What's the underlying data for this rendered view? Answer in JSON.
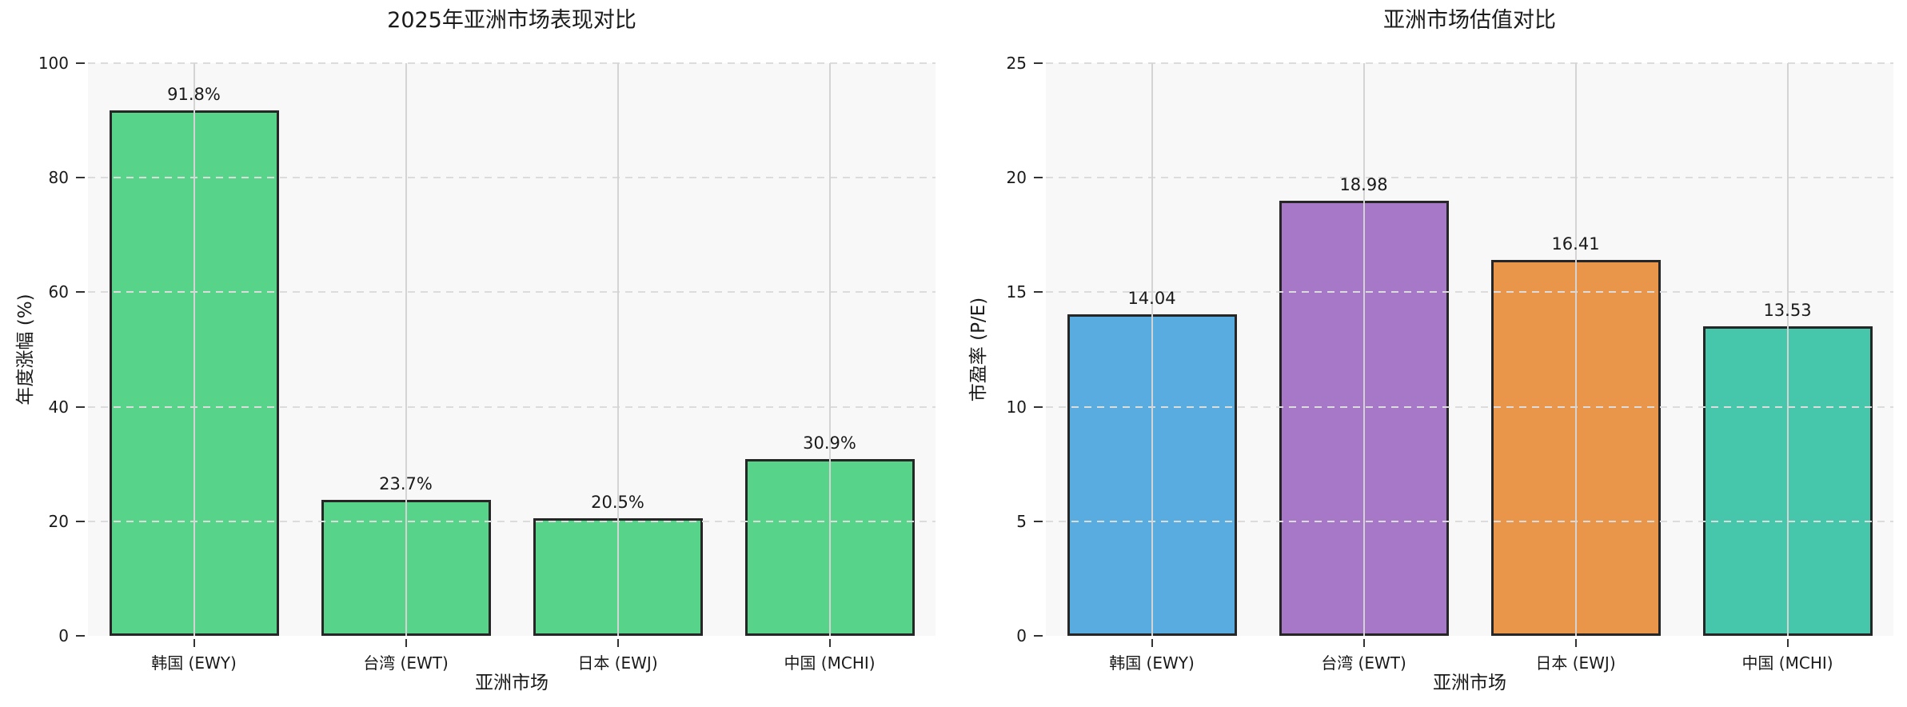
{
  "figure": {
    "background": "#ffffff",
    "plot_background": "#f8f8f8",
    "vertical_gridline_color": "#d4d4d4",
    "horizontal_gridline_color": "#dcdcdc",
    "bar_edge_color": "#262626"
  },
  "chart_data": [
    {
      "type": "bar",
      "title": "2025年亚洲市场表现对比",
      "xlabel": "亚洲市场",
      "ylabel": "年度涨幅 (%)",
      "categories": [
        "韩国 (EWY)",
        "台湾 (EWT)",
        "日本 (EWJ)",
        "中国 (MCHI)"
      ],
      "values": [
        91.8,
        23.7,
        20.5,
        30.9
      ],
      "value_labels": [
        "91.8%",
        "23.7%",
        "20.5%",
        "30.9%"
      ],
      "bar_colors": [
        "#57d38a",
        "#57d38a",
        "#57d38a",
        "#57d38a"
      ],
      "ylim": [
        0,
        100
      ],
      "yticks": [
        0,
        20,
        40,
        60,
        80,
        100
      ],
      "grid": "on",
      "legend": "none"
    },
    {
      "type": "bar",
      "title": "亚洲市场估值对比",
      "xlabel": "亚洲市场",
      "ylabel": "市盈率 (P/E)",
      "categories": [
        "韩国 (EWY)",
        "台湾 (EWT)",
        "日本 (EWJ)",
        "中国 (MCHI)"
      ],
      "values": [
        14.04,
        18.98,
        16.41,
        13.53
      ],
      "value_labels": [
        "14.04",
        "18.98",
        "16.41",
        "13.53"
      ],
      "bar_colors": [
        "#58ace0",
        "#a878c8",
        "#e9964b",
        "#46c6ab"
      ],
      "ylim": [
        0,
        25
      ],
      "yticks": [
        0,
        5,
        10,
        15,
        20,
        25
      ],
      "grid": "on",
      "legend": "none"
    }
  ]
}
